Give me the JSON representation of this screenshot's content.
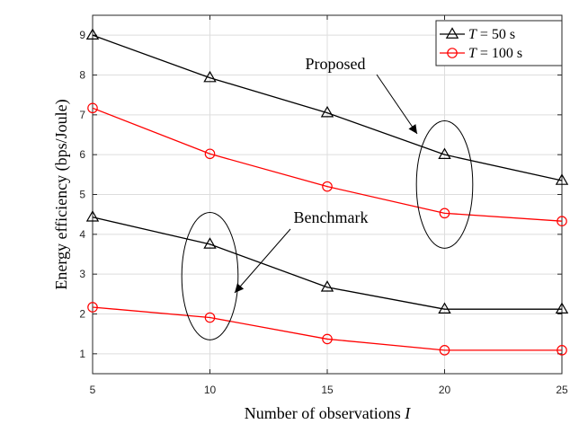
{
  "chart_data": {
    "type": "line",
    "title": "",
    "xlabel": "Number of observations",
    "xlabel_symbol": "I",
    "ylabel": "Energy efficiency (bps/Joule)",
    "x": [
      5,
      10,
      15,
      20,
      25
    ],
    "xlim": [
      5,
      25
    ],
    "ylim": [
      0.5,
      9.5
    ],
    "x_ticks": [
      5,
      10,
      15,
      20,
      25
    ],
    "y_ticks": [
      1,
      2,
      3,
      4,
      5,
      6,
      7,
      8,
      9
    ],
    "grid": true,
    "legend_position": "top-right",
    "legend": [
      {
        "symbol": "T",
        "text": " = 50 s",
        "color": "#000000",
        "marker": "triangle"
      },
      {
        "symbol": "T",
        "text": " = 100 s",
        "color": "#ff0000",
        "marker": "circle"
      }
    ],
    "series": [
      {
        "group": "Proposed",
        "legend_index": 0,
        "color": "#000000",
        "marker": "triangle",
        "values": [
          9.0,
          7.93,
          7.05,
          6.0,
          5.35
        ]
      },
      {
        "group": "Proposed",
        "legend_index": 1,
        "color": "#ff0000",
        "marker": "circle",
        "values": [
          7.17,
          6.02,
          5.2,
          4.53,
          4.33
        ]
      },
      {
        "group": "Benchmark",
        "legend_index": 0,
        "color": "#000000",
        "marker": "triangle",
        "values": [
          4.43,
          3.75,
          2.67,
          2.12,
          2.12
        ]
      },
      {
        "group": "Benchmark",
        "legend_index": 1,
        "color": "#ff0000",
        "marker": "circle",
        "values": [
          2.17,
          1.91,
          1.37,
          1.09,
          1.09
        ]
      }
    ],
    "annotations": [
      {
        "text": "Proposed",
        "ellipse_center": [
          20,
          5.25
        ],
        "ellipse_radius": [
          1.2,
          1.6
        ]
      },
      {
        "text": "Benchmark",
        "ellipse_center": [
          10,
          2.95
        ],
        "ellipse_radius": [
          1.2,
          1.6
        ]
      }
    ]
  }
}
